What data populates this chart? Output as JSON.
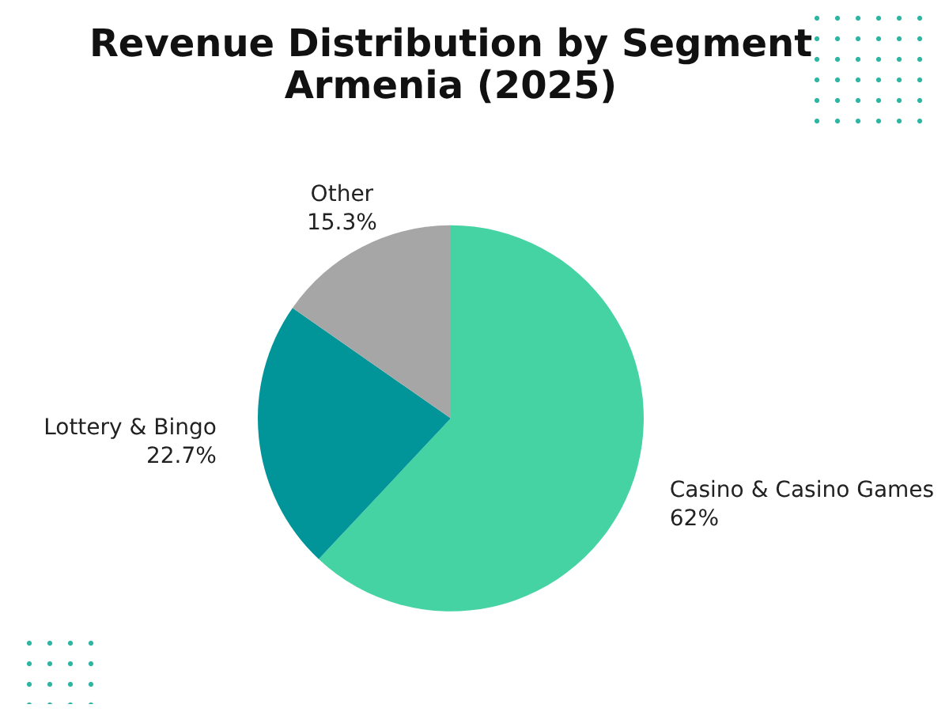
{
  "chart_data": {
    "type": "pie",
    "title": "Revenue Distribution by Segment\nArmenia (2025)",
    "categories": [
      "Casino & Casino Games",
      "Lottery & Bingo",
      "Other"
    ],
    "values": [
      62,
      22.7,
      15.3
    ],
    "colors": [
      "#45d3a4",
      "#01959a",
      "#a6a6a6"
    ],
    "value_labels": [
      "62%",
      "22.7%",
      "15.3%"
    ],
    "legend": false
  }
}
